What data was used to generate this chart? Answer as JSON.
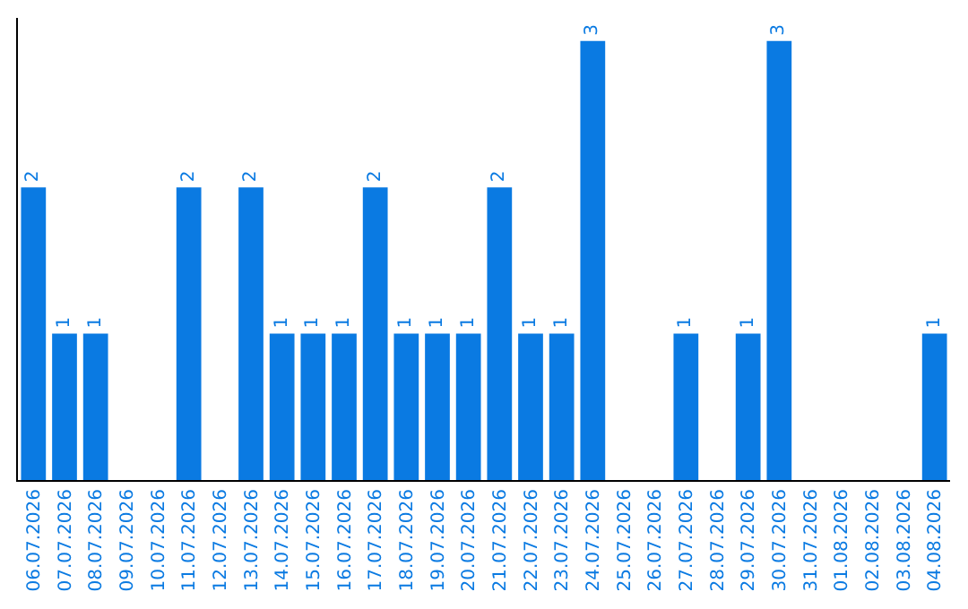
{
  "chart_data": {
    "type": "bar",
    "categories": [
      "06.07.2026",
      "07.07.2026",
      "08.07.2026",
      "09.07.2026",
      "10.07.2026",
      "11.07.2026",
      "12.07.2026",
      "13.07.2026",
      "14.07.2026",
      "15.07.2026",
      "16.07.2026",
      "17.07.2026",
      "18.07.2026",
      "19.07.2026",
      "20.07.2026",
      "21.07.2026",
      "22.07.2026",
      "23.07.2026",
      "24.07.2026",
      "25.07.2026",
      "26.07.2026",
      "27.07.2026",
      "28.07.2026",
      "29.07.2026",
      "30.07.2026",
      "31.07.2026",
      "01.08.2026",
      "02.08.2026",
      "03.08.2026",
      "04.08.2026"
    ],
    "values": [
      2,
      1,
      1,
      0,
      0,
      2,
      0,
      2,
      1,
      1,
      1,
      2,
      1,
      1,
      1,
      2,
      1,
      1,
      3,
      0,
      0,
      1,
      0,
      1,
      3,
      0,
      0,
      0,
      0,
      1
    ],
    "value_labels": [
      "2",
      "1",
      "1",
      null,
      null,
      "2",
      null,
      "2",
      "1",
      "1",
      "1",
      "2",
      "1",
      "1",
      "1",
      "2",
      "1",
      "1",
      "3",
      null,
      null,
      "1",
      null,
      "1",
      "3",
      null,
      null,
      null,
      null,
      "1"
    ],
    "color": "#0a7ae2",
    "grid": false,
    "legend": false
  }
}
